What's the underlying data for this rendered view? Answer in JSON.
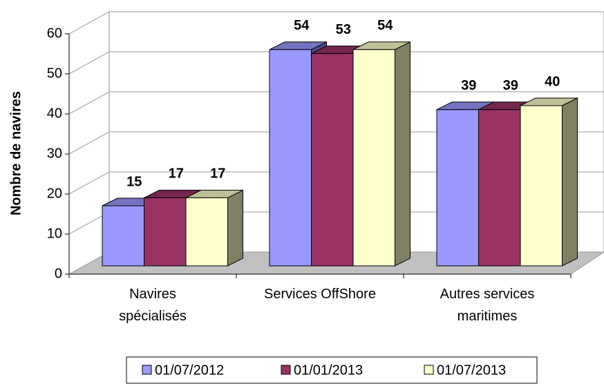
{
  "chart_data": {
    "type": "bar3d",
    "y_axis_label": "Nombre de navires",
    "categories": [
      "Navires\nspécialisés",
      "Services OffShore",
      "Autres services\nmaritimes"
    ],
    "series": [
      {
        "name": "01/07/2012",
        "color": "#9999ff",
        "values": [
          15,
          54,
          39
        ]
      },
      {
        "name": "01/01/2013",
        "color": "#993366",
        "values": [
          17,
          53,
          39
        ]
      },
      {
        "name": "01/07/2013",
        "color": "#ffffcc",
        "values": [
          17,
          54,
          40
        ]
      }
    ],
    "ylim": [
      0,
      60
    ],
    "yticks": [
      0,
      10,
      20,
      30,
      40,
      50,
      60
    ],
    "grid": true,
    "legend": "bottom"
  }
}
